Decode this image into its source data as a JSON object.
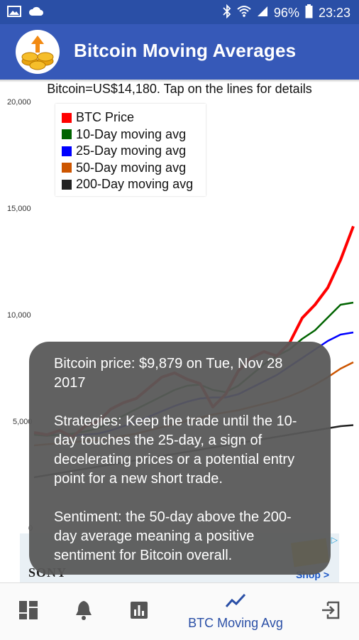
{
  "status_bar": {
    "battery": "96%",
    "time": "23:23"
  },
  "app": {
    "title": "Bitcoin Moving Averages"
  },
  "chart_header": "Bitcoin=US$14,180. Tap on the lines for details",
  "colors": {
    "appbar": "#3659b8",
    "statusbar": "#2a4fa6",
    "btc_price": "#ff0000",
    "ma10": "#006400",
    "ma25": "#0000ff",
    "ma50": "#cc5500",
    "ma200": "#222222"
  },
  "chart_data": {
    "type": "line",
    "title": "",
    "xlabel": "",
    "ylabel": "",
    "ylim": [
      0,
      20000
    ],
    "y_ticks": [
      "20,000",
      "15,000",
      "10,000",
      "5,000",
      "0"
    ],
    "x": [
      0,
      4,
      8,
      12,
      16,
      20,
      24,
      28,
      32,
      36,
      40,
      44,
      48,
      52,
      56,
      60,
      64,
      68,
      72,
      76,
      80,
      84,
      88,
      92,
      96,
      100
    ],
    "series": [
      {
        "name": "BTC Price",
        "color": "#ff0000",
        "values": [
          4500,
          4400,
          4600,
          4300,
          4800,
          5000,
          5600,
          5900,
          6100,
          6600,
          7100,
          7300,
          7000,
          6800,
          5700,
          6300,
          7400,
          8000,
          8300,
          8100,
          8700,
          9879,
          10500,
          11300,
          12600,
          14180
        ]
      },
      {
        "name": "10-Day moving avg",
        "color": "#006400",
        "values": [
          4400,
          4350,
          4400,
          4450,
          4550,
          4700,
          5000,
          5300,
          5600,
          5900,
          6200,
          6500,
          6700,
          6750,
          6500,
          6400,
          6700,
          7200,
          7700,
          8100,
          8400,
          8900,
          9300,
          9900,
          10500,
          10600
        ]
      },
      {
        "name": "25-Day moving avg",
        "color": "#0000ff",
        "values": [
          4450,
          4400,
          4400,
          4380,
          4400,
          4450,
          4600,
          4800,
          5000,
          5250,
          5500,
          5750,
          5950,
          6100,
          6150,
          6150,
          6300,
          6600,
          6900,
          7200,
          7600,
          8000,
          8400,
          8800,
          9100,
          9200
        ]
      },
      {
        "name": "50-Day moving avg",
        "color": "#cc5500",
        "values": [
          3900,
          3950,
          4000,
          4050,
          4100,
          4150,
          4250,
          4350,
          4450,
          4600,
          4750,
          4900,
          5050,
          5200,
          5350,
          5450,
          5550,
          5700,
          5850,
          6000,
          6200,
          6450,
          6750,
          7100,
          7500,
          7800
        ]
      },
      {
        "name": "200-Day moving avg",
        "color": "#222222",
        "values": [
          2400,
          2500,
          2600,
          2700,
          2800,
          2900,
          3000,
          3100,
          3200,
          3300,
          3400,
          3500,
          3600,
          3700,
          3800,
          3900,
          4000,
          4100,
          4200,
          4300,
          4400,
          4500,
          4600,
          4700,
          4800,
          4850
        ]
      }
    ]
  },
  "tooltip": {
    "price_line": "Bitcoin price: $9,879 on Tue, Nov 28 2017",
    "strategies": "Strategies: Keep the trade until the 10-day touches the 25-day, a sign of decelerating prices or a potential entry point for a new short trade.",
    "sentiment": "Sentiment: the 50-day above the 200-day average meaning a positive sentiment for Bitcoin overall."
  },
  "ad": {
    "brand": "SONY",
    "shop": "Shop >"
  },
  "bottom_nav": {
    "items": [
      {
        "icon": "dashboard-icon"
      },
      {
        "icon": "bell-icon"
      },
      {
        "icon": "bar-chart-icon"
      },
      {
        "icon": "trend-line-icon",
        "label": "BTC Moving Avg",
        "active": true
      },
      {
        "icon": "exit-icon"
      }
    ]
  }
}
